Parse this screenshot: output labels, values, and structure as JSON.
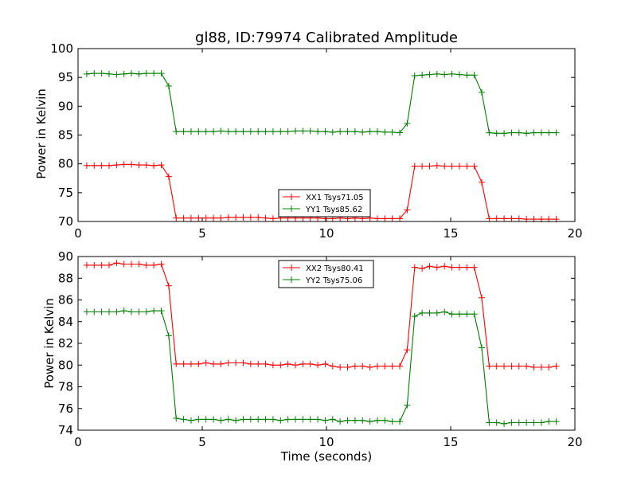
{
  "chart_data": [
    {
      "type": "line",
      "title": "gl88, ID:79974 Calibrated Amplitude",
      "xlabel": "",
      "ylabel": "Power in Kelvin",
      "xlim": [
        0,
        20
      ],
      "ylim": [
        70,
        100
      ],
      "xticks": [
        "0",
        "5",
        "10",
        "15",
        "20"
      ],
      "yticks": [
        "70",
        "75",
        "80",
        "85",
        "90",
        "95",
        "100"
      ],
      "grid": false,
      "legend_position": "lower-center",
      "x": [
        0.35,
        0.65,
        0.95,
        1.25,
        1.55,
        1.85,
        2.15,
        2.45,
        2.75,
        3.05,
        3.35,
        3.65,
        3.95,
        4.25,
        4.55,
        4.85,
        5.15,
        5.45,
        5.75,
        6.05,
        6.35,
        6.65,
        6.95,
        7.25,
        7.55,
        7.85,
        8.15,
        8.45,
        8.75,
        9.05,
        9.35,
        9.65,
        9.95,
        10.25,
        10.55,
        10.85,
        11.15,
        11.45,
        11.75,
        12.05,
        12.35,
        12.65,
        12.95,
        13.25,
        13.55,
        13.85,
        14.15,
        14.45,
        14.75,
        15.05,
        15.35,
        15.65,
        15.95,
        16.25,
        16.55,
        16.85,
        17.15,
        17.45,
        17.75,
        18.05,
        18.35,
        18.65,
        18.95,
        19.25
      ],
      "series": [
        {
          "name": "XX1 Tsys71.05",
          "color": "#ff0000",
          "values": [
            79.7,
            79.7,
            79.7,
            79.7,
            79.8,
            79.9,
            79.9,
            79.8,
            79.8,
            79.7,
            79.8,
            77.8,
            70.6,
            70.6,
            70.6,
            70.6,
            70.6,
            70.6,
            70.6,
            70.7,
            70.7,
            70.7,
            70.7,
            70.7,
            70.6,
            70.5,
            70.6,
            70.6,
            70.6,
            70.6,
            70.6,
            70.6,
            70.5,
            70.5,
            70.6,
            70.5,
            70.6,
            70.5,
            70.6,
            70.5,
            70.5,
            70.5,
            70.5,
            72.0,
            79.6,
            79.6,
            79.6,
            79.7,
            79.6,
            79.6,
            79.6,
            79.6,
            79.6,
            76.8,
            70.5,
            70.5,
            70.5,
            70.5,
            70.5,
            70.4,
            70.4,
            70.4,
            70.4,
            70.4
          ]
        },
        {
          "name": "YY1 Tsys85.62",
          "color": "#008000",
          "values": [
            95.6,
            95.7,
            95.7,
            95.6,
            95.5,
            95.6,
            95.7,
            95.6,
            95.7,
            95.7,
            95.7,
            93.5,
            85.6,
            85.6,
            85.6,
            85.6,
            85.6,
            85.6,
            85.7,
            85.6,
            85.6,
            85.6,
            85.6,
            85.6,
            85.6,
            85.6,
            85.6,
            85.6,
            85.7,
            85.7,
            85.7,
            85.6,
            85.6,
            85.5,
            85.6,
            85.6,
            85.6,
            85.5,
            85.6,
            85.6,
            85.5,
            85.5,
            85.4,
            87.0,
            95.3,
            95.4,
            95.5,
            95.6,
            95.5,
            95.6,
            95.5,
            95.4,
            95.4,
            92.4,
            85.4,
            85.3,
            85.3,
            85.4,
            85.4,
            85.3,
            85.4,
            85.4,
            85.4,
            85.4
          ]
        }
      ]
    },
    {
      "type": "line",
      "title": "",
      "xlabel": "Time (seconds)",
      "ylabel": "Power in Kelvin",
      "xlim": [
        0,
        20
      ],
      "ylim": [
        74,
        90
      ],
      "xticks": [
        "0",
        "5",
        "10",
        "15",
        "20"
      ],
      "yticks": [
        "74",
        "76",
        "78",
        "80",
        "82",
        "84",
        "86",
        "88",
        "90"
      ],
      "grid": false,
      "legend_position": "upper-center",
      "x": [
        0.35,
        0.65,
        0.95,
        1.25,
        1.55,
        1.85,
        2.15,
        2.45,
        2.75,
        3.05,
        3.35,
        3.65,
        3.95,
        4.25,
        4.55,
        4.85,
        5.15,
        5.45,
        5.75,
        6.05,
        6.35,
        6.65,
        6.95,
        7.25,
        7.55,
        7.85,
        8.15,
        8.45,
        8.75,
        9.05,
        9.35,
        9.65,
        9.95,
        10.25,
        10.55,
        10.85,
        11.15,
        11.45,
        11.75,
        12.05,
        12.35,
        12.65,
        12.95,
        13.25,
        13.55,
        13.85,
        14.15,
        14.45,
        14.75,
        15.05,
        15.35,
        15.65,
        15.95,
        16.25,
        16.55,
        16.85,
        17.15,
        17.45,
        17.75,
        18.05,
        18.35,
        18.65,
        18.95,
        19.25
      ],
      "series": [
        {
          "name": "XX2 Tsys80.41",
          "color": "#ff0000",
          "values": [
            89.2,
            89.2,
            89.2,
            89.2,
            89.4,
            89.3,
            89.3,
            89.3,
            89.2,
            89.2,
            89.3,
            87.3,
            80.1,
            80.1,
            80.1,
            80.1,
            80.2,
            80.1,
            80.1,
            80.2,
            80.2,
            80.2,
            80.1,
            80.1,
            80.1,
            80.0,
            80.0,
            80.1,
            80.0,
            80.1,
            80.1,
            80.0,
            80.1,
            79.9,
            79.8,
            79.8,
            79.9,
            79.9,
            79.8,
            79.9,
            79.9,
            79.9,
            79.9,
            81.4,
            89.0,
            88.9,
            89.1,
            89.0,
            89.1,
            89.0,
            89.0,
            89.0,
            89.0,
            86.2,
            79.9,
            79.9,
            79.9,
            79.9,
            79.9,
            79.9,
            79.8,
            79.8,
            79.8,
            79.9
          ]
        },
        {
          "name": "YY2 Tsys75.06",
          "color": "#008000",
          "values": [
            84.9,
            84.9,
            84.9,
            84.9,
            84.9,
            85.0,
            84.9,
            84.9,
            84.9,
            85.0,
            85.0,
            82.7,
            75.1,
            75.0,
            74.9,
            75.0,
            75.0,
            75.0,
            74.9,
            75.0,
            74.9,
            75.0,
            75.0,
            75.0,
            75.0,
            75.0,
            74.9,
            75.0,
            75.0,
            75.0,
            75.0,
            75.0,
            74.9,
            75.0,
            74.8,
            74.9,
            74.9,
            74.9,
            74.8,
            74.9,
            74.9,
            74.8,
            74.8,
            76.3,
            84.5,
            84.8,
            84.8,
            84.8,
            84.9,
            84.7,
            84.7,
            84.7,
            84.7,
            81.6,
            74.7,
            74.7,
            74.6,
            74.7,
            74.7,
            74.7,
            74.7,
            74.7,
            74.8,
            74.8
          ]
        }
      ]
    }
  ]
}
